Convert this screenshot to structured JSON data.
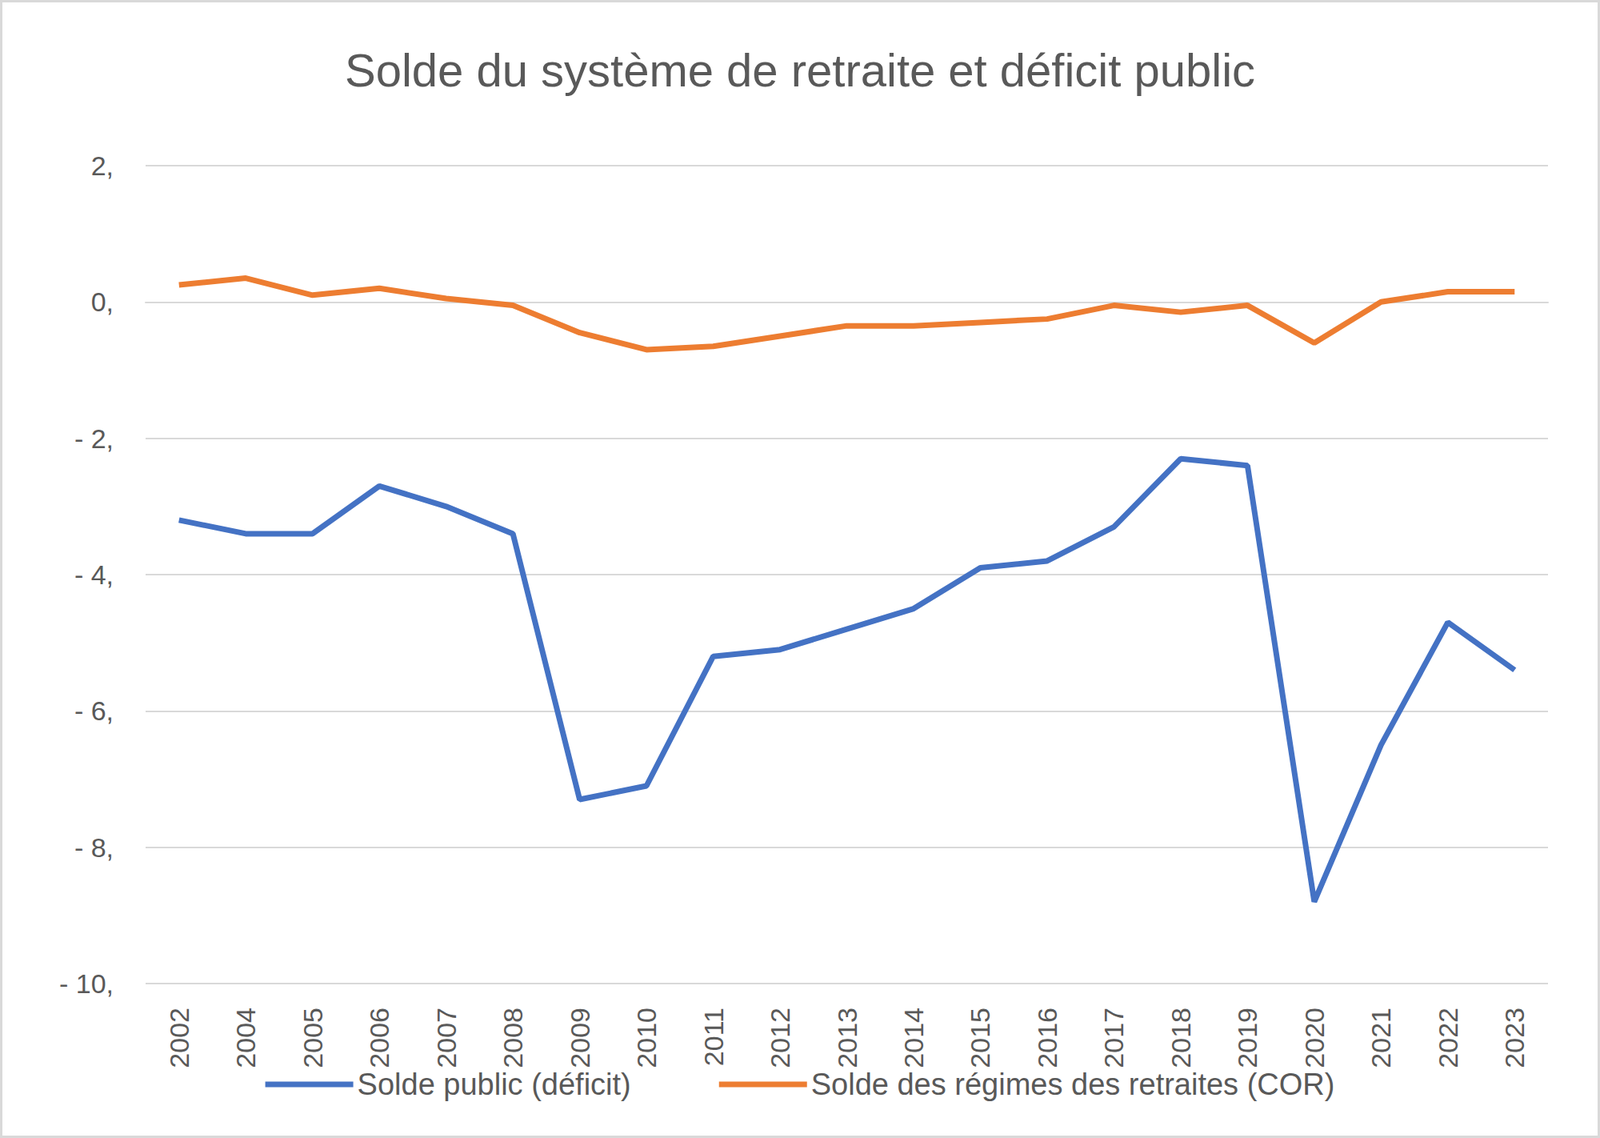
{
  "chart_data": {
    "type": "line",
    "title": "Solde du système de retraite et déficit public",
    "categories": [
      "2002",
      "2004",
      "2005",
      "2006",
      "2007",
      "2008",
      "2009",
      "2010",
      "2011",
      "2012",
      "2013",
      "2014",
      "2015",
      "2016",
      "2017",
      "2018",
      "2019",
      "2020",
      "2021",
      "2022",
      "2023"
    ],
    "series": [
      {
        "name": "Solde public (déficit)",
        "color": "#4472c4",
        "values": [
          -3.2,
          -3.4,
          -3.4,
          -2.7,
          -3.0,
          -3.4,
          -7.3,
          -7.1,
          -5.2,
          -5.1,
          -4.8,
          -4.5,
          -3.9,
          -3.8,
          -3.3,
          -2.3,
          -2.4,
          -8.8,
          -6.5,
          -4.7,
          -5.4
        ]
      },
      {
        "name": "Solde des régimes des retraites (COR)",
        "color": "#ed7d31",
        "values": [
          0.25,
          0.35,
          0.1,
          0.2,
          0.05,
          -0.05,
          -0.45,
          -0.7,
          -0.65,
          -0.5,
          -0.35,
          -0.35,
          -0.3,
          -0.25,
          -0.05,
          -0.15,
          -0.05,
          -0.6,
          0.0,
          0.15,
          0.15
        ]
      }
    ],
    "ylim": [
      -10,
      2
    ],
    "yticks": [
      {
        "value": -10,
        "label": "- 10,"
      },
      {
        "value": -8,
        "label": "- 8,"
      },
      {
        "value": -6,
        "label": "- 6,"
      },
      {
        "value": -4,
        "label": "- 4,"
      },
      {
        "value": -2,
        "label": "- 2,"
      },
      {
        "value": 0,
        "label": "0,"
      },
      {
        "value": 2,
        "label": "2,"
      }
    ],
    "grid": true,
    "legend": "bottom"
  }
}
